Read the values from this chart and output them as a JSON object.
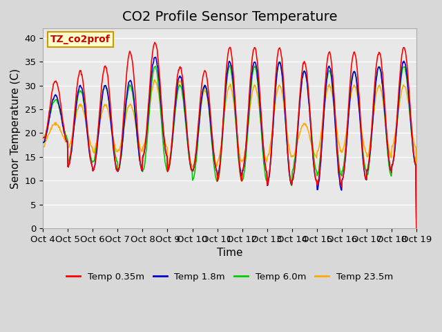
{
  "title": "CO2 Profile Sensor Temperature",
  "xlabel": "Time",
  "ylabel": "Senor Temperature (C)",
  "ylim": [
    0,
    42
  ],
  "yticks": [
    0,
    5,
    10,
    15,
    20,
    25,
    30,
    35,
    40
  ],
  "x_labels": [
    "Oct 4",
    "Oct 5",
    "Oct 6",
    "Oct 7",
    "Oct 8",
    "Oct 9",
    "Oct 10",
    "Oct 11",
    "Oct 12",
    "Oct 13",
    "Oct 14",
    "Oct 15",
    "Oct 16",
    "Oct 17",
    "Oct 18",
    "Oct 19"
  ],
  "legend_labels": [
    "Temp 0.35m",
    "Temp 1.8m",
    "Temp 6.0m",
    "Temp 23.5m"
  ],
  "legend_colors": [
    "#ff0000",
    "#0000cc",
    "#00cc00",
    "#ffaa00"
  ],
  "annotation_text": "TZ_co2prof",
  "annotation_color": "#cc0000",
  "annotation_bg": "#ffffcc",
  "annotation_border": "#cc9900",
  "plot_bg_color": "#e8e8e8",
  "fig_bg_color": "#d8d8d8",
  "grid_color": "#ffffff",
  "title_fontsize": 14,
  "axis_fontsize": 11,
  "tick_fontsize": 9.5
}
